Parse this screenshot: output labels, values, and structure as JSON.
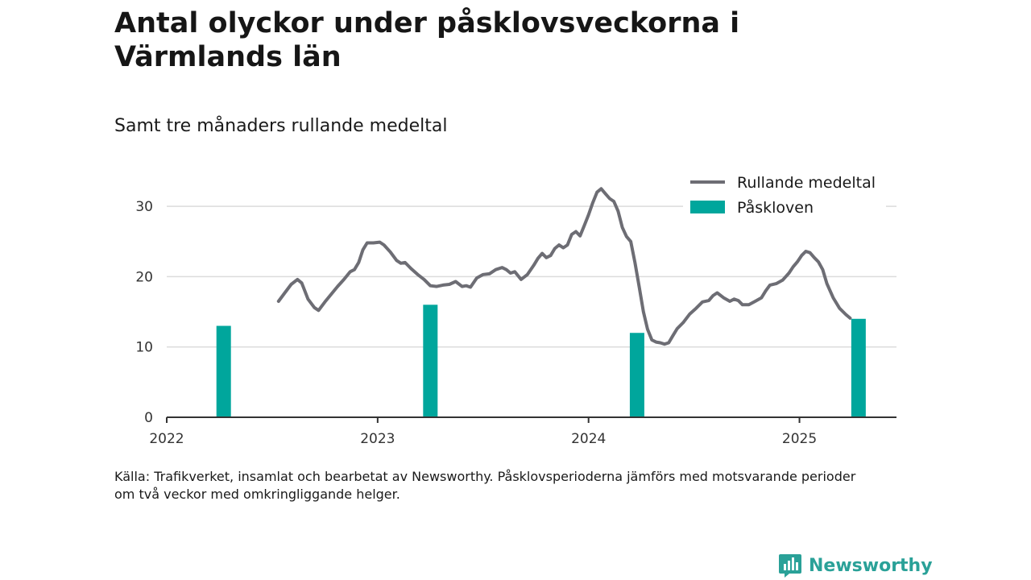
{
  "title": "Antal olyckor under påsklovsveckorna i Värmlands län",
  "subtitle": "Samt tre månaders rullande medeltal",
  "source_lines": [
    "Källa: Trafikverket, insamlat och bearbetat av Newsworthy. Påsklovsperioderna jämförs med motsvarande perioder",
    "om två veckor med omkringliggande helger."
  ],
  "brand": {
    "name": "Newsworthy",
    "color": "#2aa198"
  },
  "chart_data": {
    "type": "bar+line",
    "ylim": [
      0,
      35
    ],
    "yticks": [
      0,
      10,
      20,
      30
    ],
    "grid": true,
    "legend_position": "top-right",
    "x_ticks": [
      {
        "label": "2022",
        "value": 2022.0
      },
      {
        "label": "2023",
        "value": 2023.0
      },
      {
        "label": "2024",
        "value": 2024.0
      },
      {
        "label": "2025",
        "value": 2025.0
      }
    ],
    "legend": [
      {
        "label": "Rullande medeltal",
        "kind": "line",
        "color": "#6d6d74"
      },
      {
        "label": "Påskloven",
        "kind": "bar",
        "color": "#00a69c"
      }
    ],
    "bars": {
      "name": "Påskloven",
      "color": "#00a69c",
      "points": [
        {
          "x": 2022.27,
          "value": 13
        },
        {
          "x": 2023.25,
          "value": 16
        },
        {
          "x": 2024.23,
          "value": 12
        },
        {
          "x": 2025.28,
          "value": 14
        }
      ]
    },
    "line": {
      "name": "Rullande medeltal",
      "color": "#6d6d74",
      "points": [
        [
          2022.53,
          16.5
        ],
        [
          2022.56,
          17.7
        ],
        [
          2022.59,
          18.9
        ],
        [
          2022.62,
          19.6
        ],
        [
          2022.64,
          19.1
        ],
        [
          2022.67,
          16.8
        ],
        [
          2022.7,
          15.6
        ],
        [
          2022.72,
          15.2
        ],
        [
          2022.75,
          16.4
        ],
        [
          2022.78,
          17.5
        ],
        [
          2022.81,
          18.6
        ],
        [
          2022.84,
          19.6
        ],
        [
          2022.87,
          20.7
        ],
        [
          2022.89,
          21.0
        ],
        [
          2022.91,
          22.0
        ],
        [
          2022.93,
          23.8
        ],
        [
          2022.95,
          24.8
        ],
        [
          2022.98,
          24.8
        ],
        [
          2023.01,
          24.9
        ],
        [
          2023.03,
          24.5
        ],
        [
          2023.06,
          23.5
        ],
        [
          2023.09,
          22.3
        ],
        [
          2023.11,
          21.9
        ],
        [
          2023.13,
          22.0
        ],
        [
          2023.16,
          21.1
        ],
        [
          2023.19,
          20.3
        ],
        [
          2023.22,
          19.6
        ],
        [
          2023.25,
          18.7
        ],
        [
          2023.28,
          18.6
        ],
        [
          2023.31,
          18.8
        ],
        [
          2023.34,
          18.9
        ],
        [
          2023.37,
          19.3
        ],
        [
          2023.4,
          18.6
        ],
        [
          2023.42,
          18.7
        ],
        [
          2023.44,
          18.5
        ],
        [
          2023.47,
          19.8
        ],
        [
          2023.5,
          20.3
        ],
        [
          2023.53,
          20.4
        ],
        [
          2023.56,
          21.0
        ],
        [
          2023.59,
          21.3
        ],
        [
          2023.61,
          21.0
        ],
        [
          2023.63,
          20.5
        ],
        [
          2023.65,
          20.7
        ],
        [
          2023.68,
          19.6
        ],
        [
          2023.71,
          20.3
        ],
        [
          2023.74,
          21.6
        ],
        [
          2023.76,
          22.6
        ],
        [
          2023.78,
          23.3
        ],
        [
          2023.8,
          22.7
        ],
        [
          2023.82,
          23.0
        ],
        [
          2023.84,
          24.0
        ],
        [
          2023.86,
          24.5
        ],
        [
          2023.88,
          24.1
        ],
        [
          2023.9,
          24.5
        ],
        [
          2023.92,
          26.0
        ],
        [
          2023.94,
          26.4
        ],
        [
          2023.96,
          25.8
        ],
        [
          2023.98,
          27.3
        ],
        [
          2024.0,
          28.8
        ],
        [
          2024.02,
          30.5
        ],
        [
          2024.04,
          32.0
        ],
        [
          2024.06,
          32.5
        ],
        [
          2024.08,
          31.8
        ],
        [
          2024.1,
          31.1
        ],
        [
          2024.12,
          30.7
        ],
        [
          2024.14,
          29.3
        ],
        [
          2024.16,
          27.0
        ],
        [
          2024.18,
          25.7
        ],
        [
          2024.2,
          25.0
        ],
        [
          2024.22,
          22.0
        ],
        [
          2024.24,
          18.6
        ],
        [
          2024.26,
          15.0
        ],
        [
          2024.28,
          12.5
        ],
        [
          2024.3,
          11.0
        ],
        [
          2024.32,
          10.7
        ],
        [
          2024.34,
          10.6
        ],
        [
          2024.36,
          10.4
        ],
        [
          2024.38,
          10.6
        ],
        [
          2024.4,
          11.6
        ],
        [
          2024.42,
          12.6
        ],
        [
          2024.45,
          13.5
        ],
        [
          2024.48,
          14.7
        ],
        [
          2024.51,
          15.5
        ],
        [
          2024.54,
          16.4
        ],
        [
          2024.57,
          16.6
        ],
        [
          2024.59,
          17.3
        ],
        [
          2024.61,
          17.7
        ],
        [
          2024.64,
          17.0
        ],
        [
          2024.67,
          16.5
        ],
        [
          2024.69,
          16.8
        ],
        [
          2024.71,
          16.6
        ],
        [
          2024.73,
          16.0
        ],
        [
          2024.76,
          16.0
        ],
        [
          2024.79,
          16.5
        ],
        [
          2024.82,
          17.0
        ],
        [
          2024.84,
          18.0
        ],
        [
          2024.86,
          18.8
        ],
        [
          2024.89,
          19.0
        ],
        [
          2024.92,
          19.5
        ],
        [
          2024.95,
          20.5
        ],
        [
          2024.97,
          21.4
        ],
        [
          2024.99,
          22.1
        ],
        [
          2025.01,
          23.0
        ],
        [
          2025.03,
          23.6
        ],
        [
          2025.05,
          23.4
        ],
        [
          2025.07,
          22.7
        ],
        [
          2025.09,
          22.1
        ],
        [
          2025.11,
          21.0
        ],
        [
          2025.13,
          19.0
        ],
        [
          2025.16,
          17.0
        ],
        [
          2025.19,
          15.5
        ],
        [
          2025.22,
          14.6
        ],
        [
          2025.24,
          14.1
        ]
      ]
    }
  }
}
